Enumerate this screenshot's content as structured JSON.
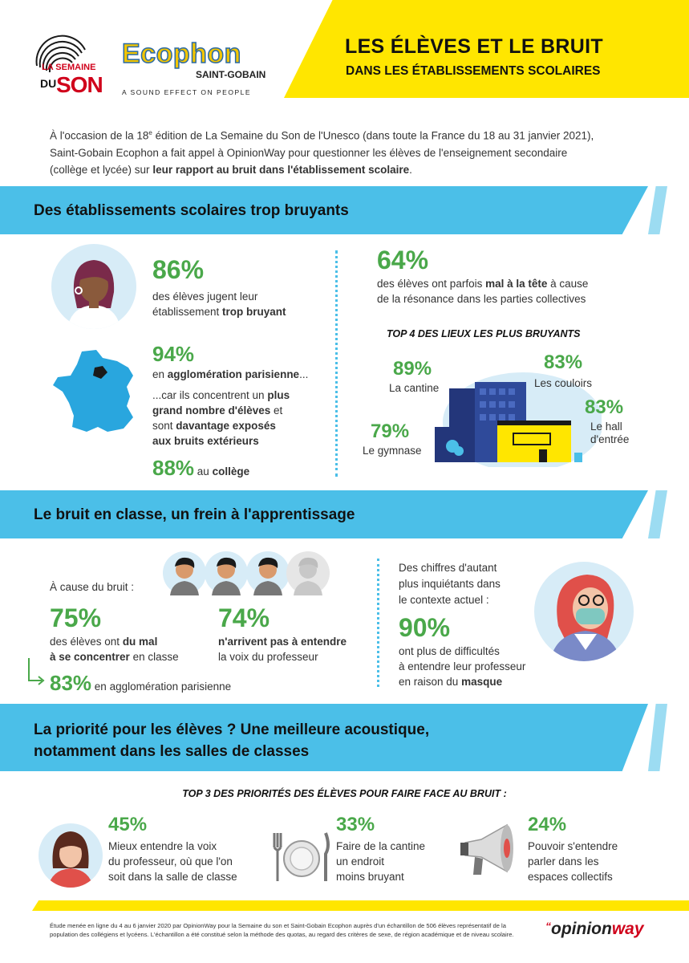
{
  "header": {
    "semaine_logo": {
      "line1": "LA SEMAINE",
      "line2": "DU",
      "line3": "SON"
    },
    "ecophon_logo": {
      "name": "Ecophon",
      "sub": "SAINT-GOBAIN",
      "tagline": "A SOUND EFFECT ON PEOPLE"
    },
    "title_line1": "LES ÉLÈVES ET LE BRUIT",
    "title_line2": "DANS LES ÉTABLISSEMENTS SCOLAIRES",
    "accent_color": "#ffe600"
  },
  "intro": {
    "p1": "À l'occasion de la 18",
    "sup": "e",
    "p2": " édition de La Semaine du Son de l'Unesco (dans toute la France du 18 au 31 janvier 2021),",
    "line2": "Saint-Gobain Ecophon a fait appel à OpinionWay pour questionner les élèves de l'enseignement secondaire",
    "line3a": "(collège et lycée) sur ",
    "line3b": "leur rapport au bruit dans l'établissement scolaire",
    "line3c": "."
  },
  "section1": {
    "title": "Des établissements scolaires trop bruyants",
    "stat1": {
      "pct": "86%",
      "t1": "des élèves jugent leur",
      "t2a": "établissement ",
      "t2b": "trop bruyant"
    },
    "stat2": {
      "pct": "94%",
      "t1a": "en ",
      "t1b": "agglomération parisienne",
      "t1c": "...",
      "t2a": "...car ils concentrent un ",
      "t2b": "plus",
      "t3": "grand nombre d'élèves",
      "t3c": " et",
      "t4a": "sont ",
      "t4b": "davantage exposés",
      "t5": "aux bruits extérieurs"
    },
    "stat3": {
      "pct": "88%",
      "t1": " au ",
      "t2": "collège"
    },
    "stat4": {
      "pct": "64%",
      "t1a": "des élèves ont parfois ",
      "t1b": "mal à la tête",
      "t1c": " à cause",
      "t2": "de la résonance dans les parties collectives"
    },
    "top4_title": "TOP 4 DES LIEUX LES PLUS BRUYANTS",
    "places": [
      {
        "pct": "89%",
        "label": "La cantine"
      },
      {
        "pct": "83%",
        "label": "Les couloirs"
      },
      {
        "pct": "83%",
        "label": "Le hall",
        "label2": "d'entrée"
      },
      {
        "pct": "79%",
        "label": "Le gymnase"
      }
    ]
  },
  "section2": {
    "title": "Le bruit en classe, un frein à l'apprentissage",
    "cause": "À cause du bruit :",
    "stat1": {
      "pct": "75%",
      "t1a": "des élèves ont ",
      "t1b": "du mal",
      "t2a": "à se concentrer",
      "t2b": " en classe"
    },
    "stat2": {
      "pct": "74%",
      "t1": "n'arrivent pas à entendre",
      "t2": "la voix du professeur"
    },
    "stat3": {
      "pct": "83%",
      "t1": " en agglomération parisienne"
    },
    "context": {
      "t1": "Des chiffres d'autant",
      "t2": "plus inquiétants dans",
      "t3": "le contexte actuel :"
    },
    "stat4": {
      "pct": "90%",
      "t1": "ont plus de difficultés",
      "t2": "à entendre leur professeur",
      "t3a": "en raison du ",
      "t3b": "masque"
    }
  },
  "section3": {
    "title_l1": "La priorité pour les élèves ? Une meilleure acoustique,",
    "title_l2": "notamment dans les salles de classes",
    "top3_title": "TOP 3 DES PRIORITÉS DES ÉLÈVES POUR FAIRE FACE AU BRUIT :",
    "p1": {
      "pct": "45%",
      "l1": "Mieux entendre la voix",
      "l2": "du professeur, où que l'on",
      "l3": "soit dans la salle de classe"
    },
    "p2": {
      "pct": "33%",
      "l1": "Faire de la cantine",
      "l2": "un endroit",
      "l3": "moins bruyant"
    },
    "p3": {
      "pct": "24%",
      "l1": "Pouvoir s'entendre",
      "l2": "parler dans les",
      "l3": "espaces collectifs"
    }
  },
  "footer": {
    "note1": "Étude menée en ligne du 4 au 6 janvier 2020 par OpinionWay pour la Semaine du son et Saint-Gobain Ecophon auprès d'un échantillon de 506 élèves représentatif de la",
    "note2": "population des collégiens et lycéens. L'échantillon a été constitué selon la méthode des quotas, au regard des critères de sexe, de région académique et de niveau scolaire.",
    "brand_a": "opinion",
    "brand_b": "way"
  }
}
